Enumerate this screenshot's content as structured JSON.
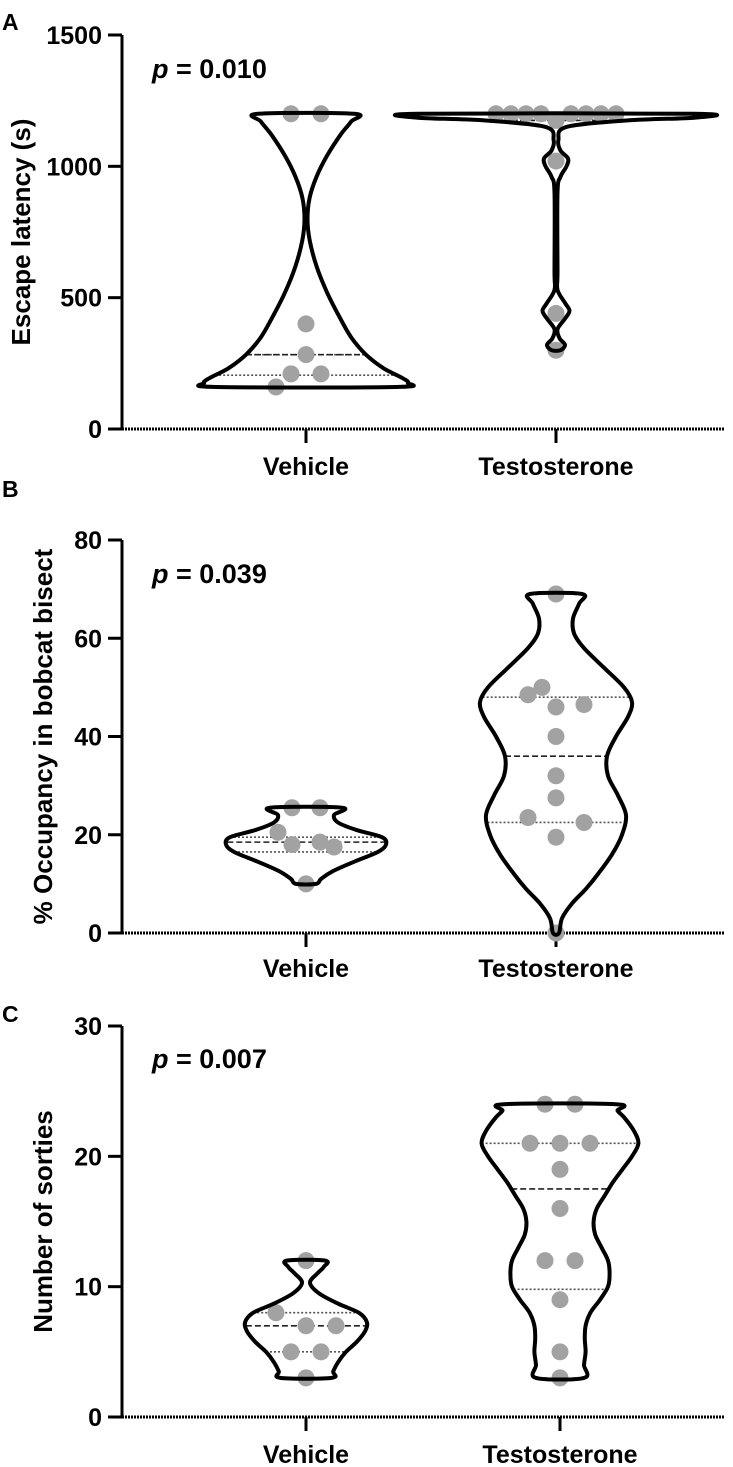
{
  "chart_data": [
    {
      "panel": "A",
      "type": "violin",
      "ylabel": "Escape latency (s)",
      "ylim": [
        0,
        1500
      ],
      "yticks": [
        "0",
        "500",
        "1000",
        "1500"
      ],
      "categories": [
        "Vehicle",
        "Testosterone"
      ],
      "pvalue": {
        "prefix": "p",
        "text": " = 0.010"
      },
      "series": [
        {
          "median": 283,
          "q1": 205,
          "q3": 283,
          "points": [
            {
              "offset": -1,
              "value": 1200
            },
            {
              "offset": 1,
              "value": 1200
            },
            {
              "offset": 0,
              "value": 400
            },
            {
              "offset": 0,
              "value": 283
            },
            {
              "offset": -1,
              "value": 210
            },
            {
              "offset": 1,
              "value": 210
            },
            {
              "offset": -2,
              "value": 160
            }
          ],
          "violin": [
            [
              160,
              3
            ],
            [
              175,
              3.4
            ],
            [
              195,
              3.2
            ],
            [
              230,
              2.6
            ],
            [
              283,
              2.0
            ],
            [
              350,
              1.5
            ],
            [
              430,
              1.1
            ],
            [
              520,
              0.7
            ],
            [
              620,
              0.35
            ],
            [
              720,
              0.12
            ],
            [
              800,
              0.05
            ],
            [
              880,
              0.12
            ],
            [
              960,
              0.35
            ],
            [
              1040,
              0.7
            ],
            [
              1120,
              1.15
            ],
            [
              1170,
              1.5
            ],
            [
              1200,
              1.6
            ]
          ]
        },
        {
          "median": 1175,
          "q1": 1175,
          "q3": 1175,
          "points": [
            {
              "offset": -4,
              "value": 1200
            },
            {
              "offset": -3,
              "value": 1200
            },
            {
              "offset": -2,
              "value": 1200
            },
            {
              "offset": -1,
              "value": 1200
            },
            {
              "offset": 1,
              "value": 1200
            },
            {
              "offset": 2,
              "value": 1200
            },
            {
              "offset": 3,
              "value": 1200
            },
            {
              "offset": 4,
              "value": 1200
            },
            {
              "offset": 0,
              "value": 1175
            },
            {
              "offset": 0,
              "value": 1020
            },
            {
              "offset": 0,
              "value": 440
            },
            {
              "offset": 0,
              "value": 300
            }
          ],
          "violin": [
            [
              300,
              0.15
            ],
            [
              320,
              0.3
            ],
            [
              345,
              0.12
            ],
            [
              380,
              0.05
            ],
            [
              420,
              0.3
            ],
            [
              450,
              0.45
            ],
            [
              480,
              0.3
            ],
            [
              530,
              0.05
            ],
            [
              600,
              0.05
            ],
            [
              900,
              0.05
            ],
            [
              960,
              0.15
            ],
            [
              1000,
              0.35
            ],
            [
              1030,
              0.4
            ],
            [
              1060,
              0.15
            ],
            [
              1100,
              0.08
            ],
            [
              1150,
              0.35
            ],
            [
              1175,
              2.4
            ],
            [
              1185,
              4.6
            ],
            [
              1200,
              4.6
            ]
          ]
        }
      ]
    },
    {
      "panel": "B",
      "type": "violin",
      "ylabel": "% Occupancy in bobcat bisect",
      "ylim": [
        0,
        80
      ],
      "yticks": [
        "0",
        "20",
        "40",
        "60",
        "80"
      ],
      "categories": [
        "Vehicle",
        "Testosterone"
      ],
      "pvalue": {
        "prefix": "p",
        "text": " = 0.039"
      },
      "series": [
        {
          "median": 18.5,
          "q1": 16.5,
          "q3": 19.5,
          "points": [
            {
              "offset": -1,
              "value": 25.5
            },
            {
              "offset": 1,
              "value": 25.5
            },
            {
              "offset": -2,
              "value": 20.5
            },
            {
              "offset": -1,
              "value": 18
            },
            {
              "offset": 1,
              "value": 18.5
            },
            {
              "offset": 2,
              "value": 17.5
            },
            {
              "offset": 0,
              "value": 10
            }
          ],
          "violin": [
            [
              10,
              0.5
            ],
            [
              11,
              0.75
            ],
            [
              12.5,
              1.3
            ],
            [
              14.5,
              2.4
            ],
            [
              16.5,
              3.6
            ],
            [
              18,
              4.0
            ],
            [
              19.5,
              3.8
            ],
            [
              21,
              2.5
            ],
            [
              22.5,
              1.6
            ],
            [
              24,
              1.4
            ],
            [
              25.5,
              1.8
            ]
          ]
        },
        {
          "median": 36,
          "q1": 22.5,
          "q3": 48,
          "points": [
            {
              "offset": 0,
              "value": 69
            },
            {
              "offset": -1,
              "value": 50
            },
            {
              "offset": -2,
              "value": 48.5
            },
            {
              "offset": 0,
              "value": 46
            },
            {
              "offset": 2,
              "value": 46.5
            },
            {
              "offset": 0,
              "value": 40
            },
            {
              "offset": 0,
              "value": 32
            },
            {
              "offset": 0,
              "value": 27.5
            },
            {
              "offset": -2,
              "value": 23.5
            },
            {
              "offset": 2,
              "value": 22.5
            },
            {
              "offset": 0,
              "value": 19.5
            },
            {
              "offset": 0,
              "value": 0
            }
          ],
          "violin": [
            [
              0,
              0.15
            ],
            [
              3,
              0.3
            ],
            [
              6,
              0.8
            ],
            [
              9,
              1.5
            ],
            [
              12,
              2.1
            ],
            [
              16,
              2.8
            ],
            [
              20,
              3.3
            ],
            [
              24,
              3.5
            ],
            [
              28,
              3.1
            ],
            [
              32,
              2.6
            ],
            [
              36,
              2.55
            ],
            [
              40,
              3.0
            ],
            [
              44,
              3.6
            ],
            [
              47,
              3.8
            ],
            [
              50,
              3.4
            ],
            [
              54,
              2.4
            ],
            [
              58,
              1.4
            ],
            [
              61,
              0.9
            ],
            [
              64,
              0.85
            ],
            [
              67,
              1.15
            ],
            [
              69,
              1.3
            ]
          ]
        }
      ]
    },
    {
      "panel": "C",
      "type": "violin",
      "ylabel": "Number of sorties",
      "ylim": [
        0,
        30
      ],
      "yticks": [
        "0",
        "10",
        "20",
        "30"
      ],
      "categories": [
        "Vehicle",
        "Testosterone"
      ],
      "pvalue": {
        "prefix": "p",
        "text": " = 0.007"
      },
      "series": [
        {
          "median": 7,
          "q1": 5,
          "q3": 8,
          "points": [
            {
              "offset": 0,
              "value": 12
            },
            {
              "offset": -2,
              "value": 8
            },
            {
              "offset": 0,
              "value": 7
            },
            {
              "offset": 2,
              "value": 7
            },
            {
              "offset": -1,
              "value": 5
            },
            {
              "offset": 1,
              "value": 5
            },
            {
              "offset": 0,
              "value": 3
            }
          ],
          "violin": [
            [
              3,
              1.6
            ],
            [
              3.5,
              1.7
            ],
            [
              4.2,
              2.0
            ],
            [
              5,
              2.5
            ],
            [
              5.8,
              3.2
            ],
            [
              6.6,
              3.7
            ],
            [
              7.3,
              3.8
            ],
            [
              8,
              3.3
            ],
            [
              8.7,
              2.0
            ],
            [
              9.5,
              0.8
            ],
            [
              10.3,
              0.25
            ],
            [
              11,
              0.7
            ],
            [
              11.5,
              1.1
            ],
            [
              12,
              1.2
            ]
          ]
        },
        {
          "median": 17.5,
          "q1": 9.8,
          "q3": 21,
          "points": [
            {
              "offset": -1,
              "value": 24
            },
            {
              "offset": 1,
              "value": 24
            },
            {
              "offset": -2,
              "value": 21
            },
            {
              "offset": 0,
              "value": 21
            },
            {
              "offset": 2,
              "value": 21
            },
            {
              "offset": 0,
              "value": 19
            },
            {
              "offset": 0,
              "value": 16
            },
            {
              "offset": -1,
              "value": 12
            },
            {
              "offset": 1,
              "value": 12
            },
            {
              "offset": 0,
              "value": 9
            },
            {
              "offset": 0,
              "value": 5
            },
            {
              "offset": 0,
              "value": 3
            }
          ],
          "violin": [
            [
              3,
              1.5
            ],
            [
              4,
              1.5
            ],
            [
              5,
              1.6
            ],
            [
              6,
              1.55
            ],
            [
              7,
              1.6
            ],
            [
              8,
              1.9
            ],
            [
              9,
              2.5
            ],
            [
              10,
              3.0
            ],
            [
              11,
              3.1
            ],
            [
              12,
              3.0
            ],
            [
              13,
              2.6
            ],
            [
              14,
              2.2
            ],
            [
              15,
              2.1
            ],
            [
              16,
              2.3
            ],
            [
              17,
              2.8
            ],
            [
              18,
              3.3
            ],
            [
              19,
              3.9
            ],
            [
              20,
              4.5
            ],
            [
              21,
              4.9
            ],
            [
              22,
              4.6
            ],
            [
              23,
              4.0
            ],
            [
              23.5,
              3.6
            ],
            [
              24,
              3.5
            ]
          ]
        }
      ]
    }
  ]
}
